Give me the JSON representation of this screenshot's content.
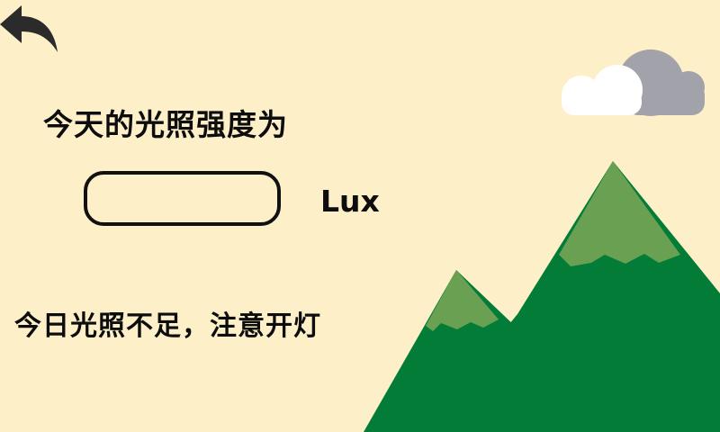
{
  "header": {
    "back_icon": "back-arrow-icon"
  },
  "main": {
    "title": "今天的光照强度为",
    "light_value": "",
    "unit": "Lux",
    "status_message": "今日光照不足，注意开灯"
  },
  "decor": {
    "cloud_icon": "cloud-icon",
    "mountain_icon": "mountain-icon",
    "colors": {
      "background": "#FDF0C8",
      "mountain": "#037C37",
      "mountain_snowcap": "#69A052",
      "cloud_front": "#FFFFFF",
      "cloud_back": "#A1A2AA",
      "text": "#0D0D0D"
    }
  }
}
